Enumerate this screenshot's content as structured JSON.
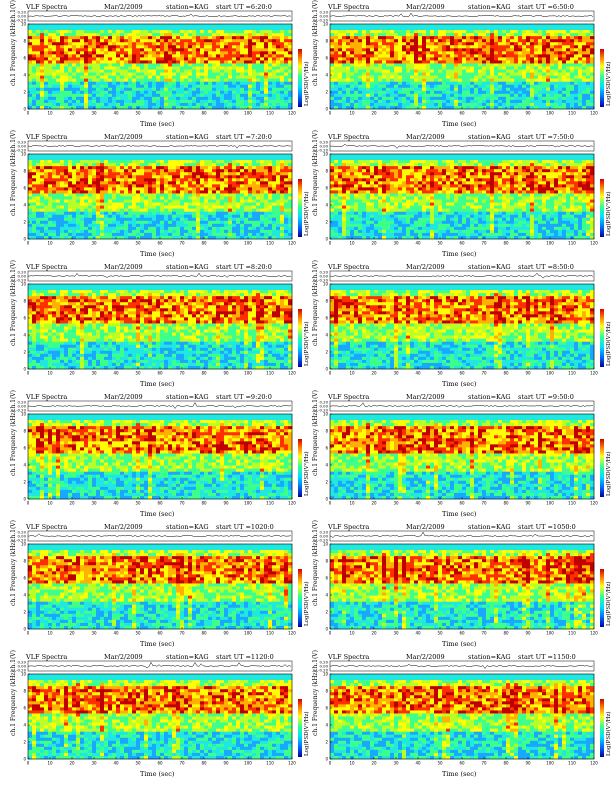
{
  "chart_data": [
    {
      "type": "heatmap",
      "title": "VLF Spectra",
      "date": "Mar/2/2009",
      "station": "station=KAG",
      "start": "start  UT =6:20:0",
      "upper_ylabel": "ch.1(V)",
      "upper_yticks": [
        "0.20",
        "0.00",
        "-0.20"
      ],
      "ylabel": "ch.1\nFrequency  (kHz)",
      "yticks": [
        "0",
        "2",
        "4",
        "6",
        "8",
        "10"
      ],
      "xlabel": "Time  (sec)",
      "xticks": [
        "0",
        "10",
        "20",
        "30",
        "40",
        "50",
        "60",
        "70",
        "80",
        "90",
        "100",
        "110",
        "120"
      ],
      "colorbar_label": "Log(PSD(V²/Hz)",
      "xlim": [
        0,
        120
      ],
      "ylim": [
        0,
        10
      ]
    },
    {
      "type": "heatmap",
      "title": "VLF Spectra",
      "date": "Mar/2/2009",
      "station": "station=KAG",
      "start": "start  UT =6:50:0",
      "upper_ylabel": "ch.1(V)",
      "upper_yticks": [
        "0.20",
        "0.00",
        "-0.20"
      ],
      "ylabel": "ch.1\nFrequency  (kHz)",
      "yticks": [
        "0",
        "2",
        "4",
        "6",
        "8",
        "10"
      ],
      "xlabel": "Time  (sec)",
      "xticks": [
        "0",
        "10",
        "20",
        "30",
        "40",
        "50",
        "60",
        "70",
        "80",
        "90",
        "100",
        "110",
        "120"
      ],
      "colorbar_label": "Log(PSD(V²/Hz)",
      "xlim": [
        0,
        120
      ],
      "ylim": [
        0,
        10
      ]
    },
    {
      "type": "heatmap",
      "title": "VLF Spectra",
      "date": "Mar/2/2009",
      "station": "station=KAG",
      "start": "start  UT =7:20:0",
      "upper_ylabel": "ch.1(V)",
      "upper_yticks": [
        "0.20",
        "0.00",
        "-0.20"
      ],
      "ylabel": "ch.1\nFrequency  (kHz)",
      "yticks": [
        "0",
        "2",
        "4",
        "6",
        "8",
        "10"
      ],
      "xlabel": "Time  (sec)",
      "xticks": [
        "0",
        "10",
        "20",
        "30",
        "40",
        "50",
        "60",
        "70",
        "80",
        "90",
        "100",
        "110",
        "120"
      ],
      "colorbar_label": "Log(PSD(V²/Hz)",
      "xlim": [
        0,
        120
      ],
      "ylim": [
        0,
        10
      ]
    },
    {
      "type": "heatmap",
      "title": "VLF Spectra",
      "date": "Mar/2/2009",
      "station": "station=KAG",
      "start": "start  UT =7:50:0",
      "upper_ylabel": "ch.1(V)",
      "upper_yticks": [
        "0.20",
        "0.00",
        "-0.20"
      ],
      "ylabel": "ch.1\nFrequency  (kHz)",
      "yticks": [
        "0",
        "2",
        "4",
        "6",
        "8",
        "10"
      ],
      "xlabel": "Time  (sec)",
      "xticks": [
        "0",
        "10",
        "20",
        "30",
        "40",
        "50",
        "60",
        "70",
        "80",
        "90",
        "100",
        "110",
        "120"
      ],
      "colorbar_label": "Log(PSD(V²/Hz)",
      "xlim": [
        0,
        120
      ],
      "ylim": [
        0,
        10
      ]
    },
    {
      "type": "heatmap",
      "title": "VLF Spectra",
      "date": "Mar/2/2009",
      "station": "station=KAG",
      "start": "start  UT =8:20:0",
      "upper_ylabel": "ch.1(V)",
      "upper_yticks": [
        "0.20",
        "0.00",
        "-0.20"
      ],
      "ylabel": "ch.1\nFrequency  (kHz)",
      "yticks": [
        "0",
        "2",
        "4",
        "6",
        "8",
        "10"
      ],
      "xlabel": "Time  (sec)",
      "xticks": [
        "0",
        "10",
        "20",
        "30",
        "40",
        "50",
        "60",
        "70",
        "80",
        "90",
        "100",
        "110",
        "120"
      ],
      "colorbar_label": "Log(PSD(V²/Hz)",
      "xlim": [
        0,
        120
      ],
      "ylim": [
        0,
        10
      ]
    },
    {
      "type": "heatmap",
      "title": "VLF Spectra",
      "date": "Mar/2/2009",
      "station": "station=KAG",
      "start": "start  UT =8:50:0",
      "upper_ylabel": "ch.1(V)",
      "upper_yticks": [
        "0.20",
        "0.00",
        "-0.20"
      ],
      "ylabel": "ch.1\nFrequency  (kHz)",
      "yticks": [
        "0",
        "2",
        "4",
        "6",
        "8",
        "10"
      ],
      "xlabel": "Time  (sec)",
      "xticks": [
        "0",
        "10",
        "20",
        "30",
        "40",
        "50",
        "60",
        "70",
        "80",
        "90",
        "100",
        "110",
        "120"
      ],
      "colorbar_label": "Log(PSD(V²/Hz)",
      "xlim": [
        0,
        120
      ],
      "ylim": [
        0,
        10
      ]
    },
    {
      "type": "heatmap",
      "title": "VLF Spectra",
      "date": "Mar/2/2009",
      "station": "station=KAG",
      "start": "start  UT =9:20:0",
      "upper_ylabel": "ch.1(V)",
      "upper_yticks": [
        "0.20",
        "0.00",
        "-0.20"
      ],
      "ylabel": "ch.1\nFrequency  (kHz)",
      "yticks": [
        "0",
        "2",
        "4",
        "6",
        "8",
        "10"
      ],
      "xlabel": "Time  (sec)",
      "xticks": [
        "0",
        "10",
        "20",
        "30",
        "40",
        "50",
        "60",
        "70",
        "80",
        "90",
        "100",
        "110",
        "120"
      ],
      "colorbar_label": "Log(PSD(V²/Hz)",
      "xlim": [
        0,
        120
      ],
      "ylim": [
        0,
        10
      ]
    },
    {
      "type": "heatmap",
      "title": "VLF Spectra",
      "date": "Mar/2/2009",
      "station": "station=KAG",
      "start": "start  UT =9:50:0",
      "upper_ylabel": "ch.1(V)",
      "upper_yticks": [
        "0.20",
        "0.00",
        "-0.20"
      ],
      "ylabel": "ch.1\nFrequency  (kHz)",
      "yticks": [
        "0",
        "2",
        "4",
        "6",
        "8",
        "10"
      ],
      "xlabel": "Time  (sec)",
      "xticks": [
        "0",
        "10",
        "20",
        "30",
        "40",
        "50",
        "60",
        "70",
        "80",
        "90",
        "100",
        "110",
        "120"
      ],
      "colorbar_label": "Log(PSD(V²/Hz)",
      "xlim": [
        0,
        120
      ],
      "ylim": [
        0,
        10
      ]
    },
    {
      "type": "heatmap",
      "title": "VLF Spectra",
      "date": "Mar/2/2009",
      "station": "station=KAG",
      "start": "start  UT =1020:0",
      "upper_ylabel": "ch.1(V)",
      "upper_yticks": [
        "0.20",
        "0.00",
        "-0.20"
      ],
      "ylabel": "ch.1\nFrequency  (kHz)",
      "yticks": [
        "0",
        "2",
        "4",
        "6",
        "8",
        "10"
      ],
      "xlabel": "Time  (sec)",
      "xticks": [
        "0",
        "10",
        "20",
        "30",
        "40",
        "50",
        "60",
        "70",
        "80",
        "90",
        "100",
        "110",
        "120"
      ],
      "colorbar_label": "Log(PSD(V²/Hz)",
      "xlim": [
        0,
        120
      ],
      "ylim": [
        0,
        10
      ]
    },
    {
      "type": "heatmap",
      "title": "VLF Spectra",
      "date": "Mar/2/2009",
      "station": "station=KAG",
      "start": "start  UT =1050:0",
      "upper_ylabel": "ch.1(V)",
      "upper_yticks": [
        "0.20",
        "0.00",
        "-0.20"
      ],
      "ylabel": "ch.1\nFrequency  (kHz)",
      "yticks": [
        "0",
        "2",
        "4",
        "6",
        "8",
        "10"
      ],
      "xlabel": "Time  (sec)",
      "xticks": [
        "0",
        "10",
        "20",
        "30",
        "40",
        "50",
        "60",
        "70",
        "80",
        "90",
        "100",
        "110",
        "120"
      ],
      "colorbar_label": "Log(PSD(V²/Hz)",
      "xlim": [
        0,
        120
      ],
      "ylim": [
        0,
        10
      ]
    },
    {
      "type": "heatmap",
      "title": "VLF Spectra",
      "date": "Mar/2/2009",
      "station": "station=KAG",
      "start": "start  UT =1120:0",
      "upper_ylabel": "ch.1(V)",
      "upper_yticks": [
        "0.20",
        "0.00",
        "-0.20"
      ],
      "ylabel": "ch.1\nFrequency  (kHz)",
      "yticks": [
        "0",
        "2",
        "4",
        "6",
        "8",
        "10"
      ],
      "xlabel": "Time  (sec)",
      "xticks": [
        "0",
        "10",
        "20",
        "30",
        "40",
        "50",
        "60",
        "70",
        "80",
        "90",
        "100",
        "110",
        "120"
      ],
      "colorbar_label": "Log(PSD(V²/Hz)",
      "xlim": [
        0,
        120
      ],
      "ylim": [
        0,
        10
      ]
    },
    {
      "type": "heatmap",
      "title": "VLF Spectra",
      "date": "Mar/2/2009",
      "station": "station=KAG",
      "start": "start  UT =1150:0",
      "upper_ylabel": "ch.1(V)",
      "upper_yticks": [
        "0.20",
        "0.00",
        "-0.20"
      ],
      "ylabel": "ch.1\nFrequency  (kHz)",
      "yticks": [
        "0",
        "2",
        "4",
        "6",
        "8",
        "10"
      ],
      "xlabel": "Time  (sec)",
      "xticks": [
        "0",
        "10",
        "20",
        "30",
        "40",
        "50",
        "60",
        "70",
        "80",
        "90",
        "100",
        "110",
        "120"
      ],
      "colorbar_label": "Log(PSD(V²/Hz)",
      "xlim": [
        0,
        120
      ],
      "ylim": [
        0,
        10
      ]
    }
  ]
}
